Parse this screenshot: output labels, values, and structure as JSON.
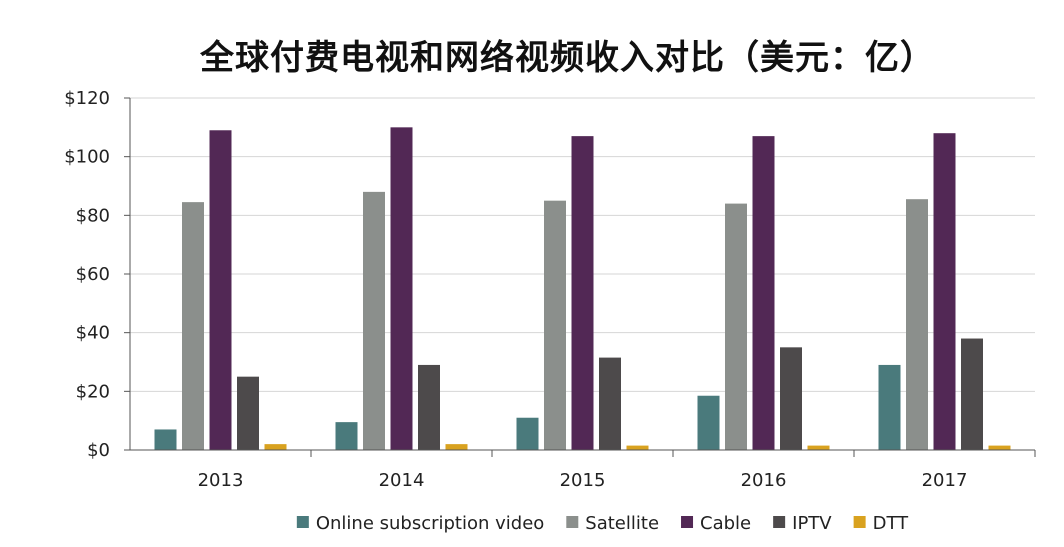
{
  "chart_data": {
    "type": "bar",
    "title": "全球付费电视和网络视频收入对比（美元：亿）",
    "categories": [
      "2013",
      "2014",
      "2015",
      "2016",
      "2017"
    ],
    "series": [
      {
        "name": "Online subscription video",
        "color": "#4a7a7c",
        "values": [
          7,
          9.5,
          11,
          18.5,
          29
        ]
      },
      {
        "name": "Satellite",
        "color": "#8b8f8c",
        "values": [
          84.5,
          88,
          85,
          84,
          85.5
        ]
      },
      {
        "name": "Cable",
        "color": "#522855",
        "values": [
          109,
          110,
          107,
          107,
          108
        ]
      },
      {
        "name": "IPTV",
        "color": "#4d4a4b",
        "values": [
          25,
          29,
          31.5,
          35,
          38
        ]
      },
      {
        "name": "DTT",
        "color": "#d9a21f",
        "values": [
          2,
          2,
          1.5,
          1.5,
          1.5
        ]
      }
    ],
    "ylim": [
      0,
      120
    ],
    "yticks": [
      0,
      20,
      40,
      60,
      80,
      100,
      120
    ],
    "ytick_labels": [
      "$0",
      "$20",
      "$40",
      "$60",
      "$80",
      "$100",
      "$120"
    ],
    "grid": true,
    "legend_position": "bottom"
  }
}
